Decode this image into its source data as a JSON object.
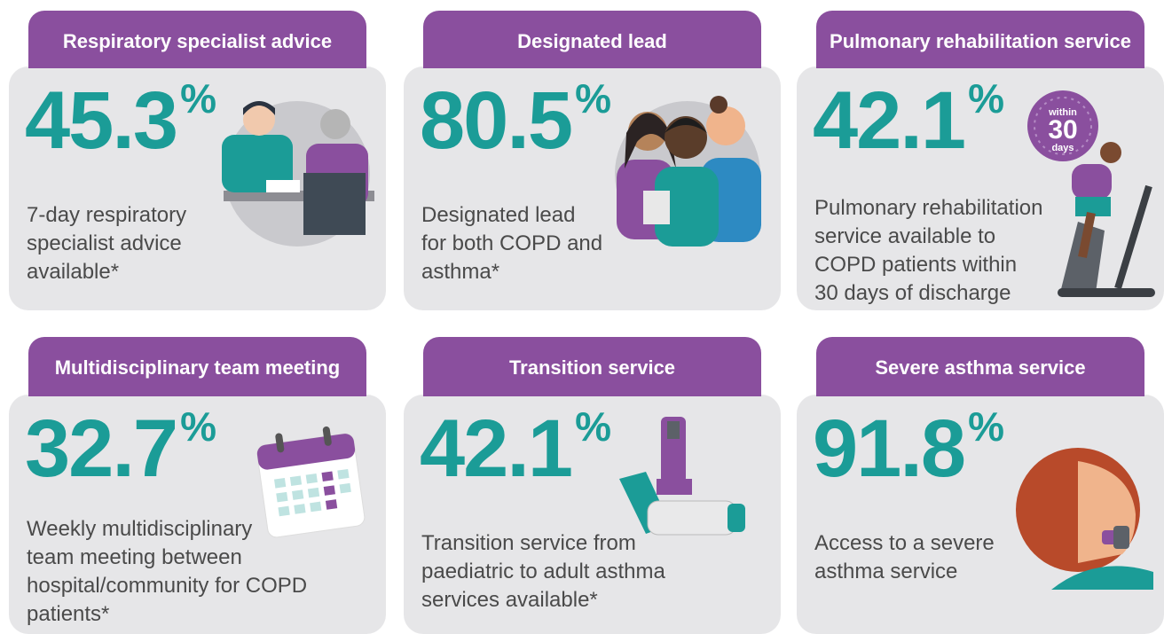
{
  "cards": [
    {
      "title": "Respiratory specialist advice",
      "value": 45.3,
      "unit": "%",
      "description": [
        "7-day respiratory",
        "specialist advice",
        "available*"
      ]
    },
    {
      "title": "Designated lead",
      "value": 80.5,
      "unit": "%",
      "description": [
        "Designated lead",
        "for both COPD and",
        "asthma*"
      ]
    },
    {
      "title": "Pulmonary rehabilitation service",
      "value": 42.1,
      "unit": "%",
      "description": [
        "Pulmonary rehabilitation",
        "service available to",
        "COPD patients within",
        "30 days of discharge"
      ],
      "badge": [
        "within",
        "30",
        "days"
      ]
    },
    {
      "title": "Multidisciplinary team meeting",
      "value": 32.7,
      "unit": "%",
      "description": [
        "Weekly multidisciplinary",
        "team meeting between",
        "hospital/community for COPD",
        "patients*"
      ]
    },
    {
      "title": "Transition service",
      "value": 42.1,
      "unit": "%",
      "description": [
        "Transition service from",
        "paediatric to adult asthma",
        "services available*"
      ]
    },
    {
      "title": "Severe asthma service",
      "value": 91.8,
      "unit": "%",
      "description": [
        "Access to a severe",
        "asthma service"
      ]
    }
  ]
}
